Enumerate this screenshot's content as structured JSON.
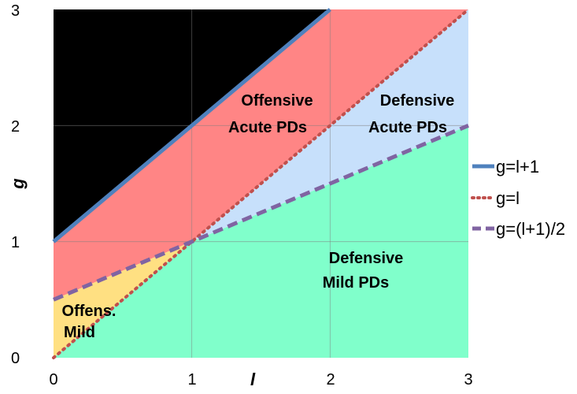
{
  "chart_data": {
    "type": "area",
    "xlabel": "l",
    "ylabel": "g",
    "xlim": [
      0,
      3
    ],
    "ylim": [
      0,
      3
    ],
    "x_ticks": [
      "0",
      "1",
      "2",
      "3"
    ],
    "y_ticks": [
      "0",
      "1",
      "2",
      "3"
    ],
    "grid": true,
    "legend_position": "right",
    "regions": [
      {
        "id": "black",
        "color": "#000000",
        "polygon": [
          [
            0,
            1
          ],
          [
            0,
            3
          ],
          [
            2,
            3
          ]
        ]
      },
      {
        "id": "offensive-acute",
        "label": "Offensive Acute PDs",
        "color": "#ff8585",
        "polygon": [
          [
            0,
            1
          ],
          [
            2,
            3
          ],
          [
            3,
            3
          ],
          [
            1,
            1
          ],
          [
            0,
            0.5
          ]
        ]
      },
      {
        "id": "offensive-mild",
        "label": "Offens. Mild",
        "color": "#ffe082",
        "polygon": [
          [
            0,
            0.5
          ],
          [
            1,
            1
          ],
          [
            0,
            0
          ]
        ]
      },
      {
        "id": "defensive-acute",
        "label": "Defensive Acute PDs",
        "color": "#c7e0fb",
        "polygon": [
          [
            1,
            1
          ],
          [
            3,
            3
          ],
          [
            3,
            2
          ]
        ]
      },
      {
        "id": "defensive-mild",
        "label": "Defensive Mild PDs",
        "color": "#80ffcb",
        "polygon": [
          [
            0,
            0
          ],
          [
            1,
            1
          ],
          [
            3,
            2
          ],
          [
            3,
            0
          ]
        ]
      }
    ],
    "series": [
      {
        "name": "g=l+1",
        "style": "solid",
        "color": "#4f81bd",
        "x": [
          0,
          2
        ],
        "y": [
          1,
          3
        ]
      },
      {
        "name": "g=l",
        "style": "dotted",
        "color": "#c0504d",
        "x": [
          0,
          3
        ],
        "y": [
          0,
          3
        ]
      },
      {
        "name": "g=(l+1)/2",
        "style": "dashed",
        "color": "#8064a2",
        "x": [
          0,
          3
        ],
        "y": [
          0.5,
          2
        ]
      }
    ]
  }
}
